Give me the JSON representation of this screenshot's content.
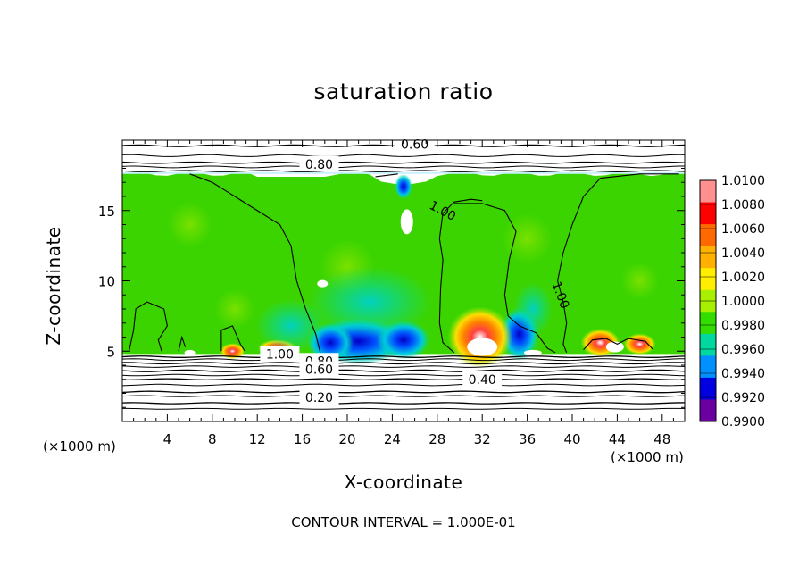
{
  "chart_data": {
    "type": "heatmap",
    "title": "saturation ratio",
    "xlabel": "X-coordinate",
    "ylabel": "Z-coordinate",
    "x_unit_label": "(×1000 m)",
    "x_unit_label_right": "(×1000 m)",
    "xlim": [
      0,
      50
    ],
    "ylim": [
      0,
      20
    ],
    "x_ticks": [
      4,
      8,
      12,
      16,
      20,
      24,
      28,
      32,
      36,
      40,
      44,
      48
    ],
    "y_ticks": [
      5,
      10,
      15
    ],
    "footer": "CONTOUR INTERVAL = 1.000E-01",
    "colorbar": {
      "labels": [
        "1.0100",
        "1.0080",
        "1.0060",
        "1.0040",
        "1.0020",
        "1.0000",
        "0.9980",
        "0.9960",
        "0.9940",
        "0.9920",
        "0.9900"
      ],
      "colors": [
        "#ff9090",
        "#ff0000",
        "#ff6a00",
        "#ffb000",
        "#ffee00",
        "#a8f000",
        "#33dd00",
        "#00d8a0",
        "#0090ff",
        "#0000e0",
        "#6a00a0"
      ]
    },
    "contour_labels": [
      {
        "text": "0.60",
        "x": 26,
        "z": 19.7
      },
      {
        "text": "0.80",
        "x": 17.5,
        "z": 18.3
      },
      {
        "text": "1.00",
        "x": 28.5,
        "z": 15
      },
      {
        "text": "1.00",
        "x": 39,
        "z": 9
      },
      {
        "text": "1.00",
        "x": 14,
        "z": 4.8
      },
      {
        "text": "0.80",
        "x": 17.5,
        "z": 4.3
      },
      {
        "text": "0.60",
        "x": 17.5,
        "z": 3.7
      },
      {
        "text": "0.40",
        "x": 32,
        "z": 3
      },
      {
        "text": "0.20",
        "x": 17.5,
        "z": 1.7
      }
    ],
    "cloud_layer_z": [
      4.8,
      17.6
    ],
    "features": [
      {
        "kind": "subsaturated",
        "x_range": [
          17,
          27
        ],
        "z_peak": 7.5,
        "min_value": 0.992
      },
      {
        "kind": "subsaturated",
        "x_range": [
          34,
          38
        ],
        "z_peak": 7,
        "min_value": 0.993
      },
      {
        "kind": "supersaturated",
        "x": 31.8,
        "z_peak": 7.5,
        "max_value": 1.01
      },
      {
        "kind": "supersaturated",
        "x_range": [
          40,
          48
        ],
        "z_peak": 6,
        "max_value": 1.008
      },
      {
        "kind": "supersaturated",
        "x": 13.5,
        "z_peak": 5.5,
        "max_value": 1.006
      },
      {
        "kind": "dry-intrusion",
        "x": 25,
        "z_range": [
          13,
          17.5
        ],
        "min_value": 0.992
      }
    ]
  }
}
